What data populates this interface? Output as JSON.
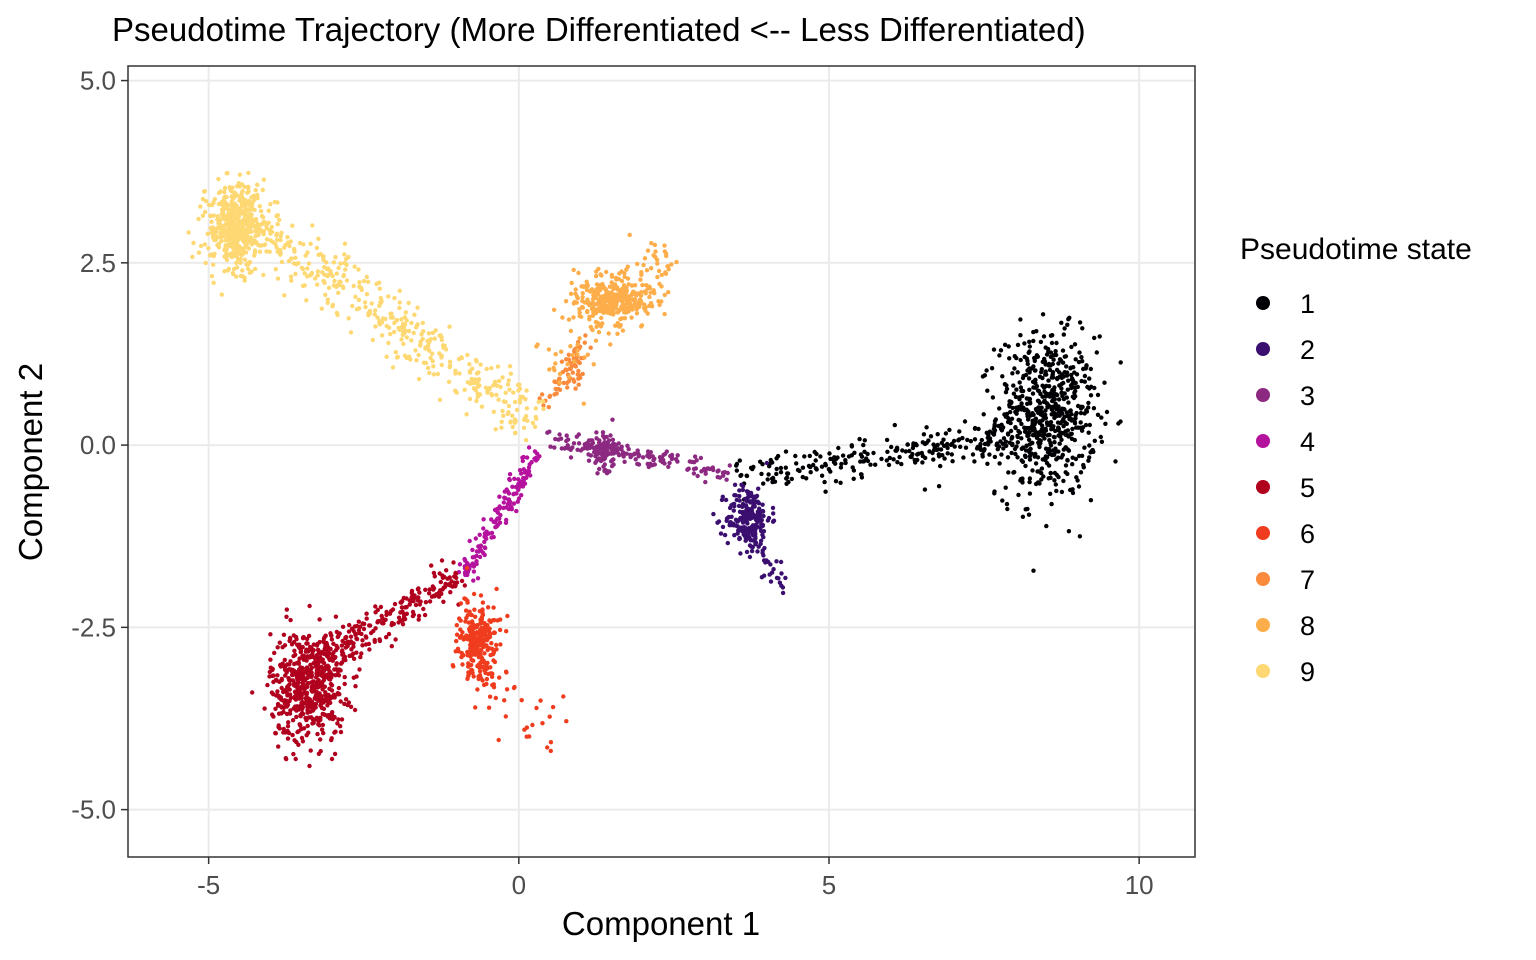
{
  "chart_data": {
    "type": "scatter",
    "title": "Pseudotime Trajectory (More Differentiated <-- Less Differentiated)",
    "xlabel": "Component 1",
    "ylabel": "Component 2",
    "xlim": [
      -6.3,
      10.9
    ],
    "ylim": [
      -5.65,
      5.2
    ],
    "x_ticks": [
      -5,
      0,
      5,
      10
    ],
    "x_tick_labels": [
      "-5",
      "0",
      "5",
      "10"
    ],
    "y_ticks": [
      5.0,
      2.5,
      0.0,
      -2.5,
      -5.0
    ],
    "y_tick_labels": [
      "5.0",
      "2.5",
      "0.0",
      "-2.5",
      "-5.0"
    ],
    "grid": true,
    "legend": {
      "title": "Pseudotime state",
      "placement": "right"
    },
    "series": [
      {
        "name": "1",
        "color": "#000004",
        "clusters": [
          {
            "center": [
              8.5,
              0.4
            ],
            "spread": [
              0.4,
              0.55
            ],
            "n": 650
          }
        ],
        "branches": [
          {
            "from": [
              3.5,
              -0.4
            ],
            "to": [
              8.0,
              0.1
            ],
            "n": 240,
            "width": 0.13
          }
        ]
      },
      {
        "name": "2",
        "color": "#3b0f70",
        "clusters": [
          {
            "center": [
              3.7,
              -1.0
            ],
            "spread": [
              0.18,
              0.22
            ],
            "n": 200
          }
        ],
        "branches": [
          {
            "from": [
              3.6,
              -1.1
            ],
            "to": [
              4.3,
              -2.0
            ],
            "n": 40,
            "width": 0.09
          }
        ]
      },
      {
        "name": "3",
        "color": "#8c2981",
        "clusters": [
          {
            "center": [
              1.4,
              -0.1
            ],
            "spread": [
              0.13,
              0.14
            ],
            "n": 90
          }
        ],
        "branches": [
          {
            "from": [
              0.4,
              0.1
            ],
            "to": [
              3.4,
              -0.38
            ],
            "n": 150,
            "width": 0.08
          }
        ]
      },
      {
        "name": "4",
        "color": "#b5129e",
        "branches": [
          {
            "from": [
              -0.9,
              -1.8
            ],
            "to": [
              0.3,
              -0.1
            ],
            "n": 150,
            "width": 0.08
          }
        ]
      },
      {
        "name": "5",
        "color": "#b0001e",
        "clusters": [
          {
            "center": [
              -3.4,
              -3.3
            ],
            "spread": [
              0.3,
              0.38
            ],
            "n": 550
          }
        ],
        "branches": [
          {
            "from": [
              -3.3,
              -3.0
            ],
            "to": [
              -0.9,
              -1.75
            ],
            "n": 240,
            "width": 0.12
          }
        ]
      },
      {
        "name": "6",
        "color": "#f03c1e",
        "clusters": [
          {
            "center": [
              -0.65,
              -2.7
            ],
            "spread": [
              0.16,
              0.28
            ],
            "n": 260
          }
        ],
        "branches": [
          {
            "from": [
              -0.5,
              -3.0
            ],
            "to": [
              0.6,
              -4.2
            ],
            "n": 30,
            "width": 0.25
          }
        ]
      },
      {
        "name": "7",
        "color": "#fb8a3c",
        "clusters": [
          {
            "center": [
              0.9,
              1.0
            ],
            "spread": [
              0.07,
              0.12
            ],
            "n": 30
          }
        ],
        "branches": [
          {
            "from": [
              0.4,
              0.5
            ],
            "to": [
              1.1,
              1.5
            ],
            "n": 40,
            "width": 0.08
          }
        ]
      },
      {
        "name": "8",
        "color": "#fdae4b",
        "clusters": [
          {
            "center": [
              1.5,
              2.0
            ],
            "spread": [
              0.3,
              0.17
            ],
            "n": 330
          }
        ],
        "branches": [
          {
            "from": [
              0.5,
              1.0
            ],
            "to": [
              2.5,
              2.6
            ],
            "n": 100,
            "width": 0.22
          }
        ]
      },
      {
        "name": "9",
        "color": "#fdd873",
        "clusters": [
          {
            "center": [
              -4.55,
              3.0
            ],
            "spread": [
              0.22,
              0.28
            ],
            "n": 500
          }
        ],
        "branches": [
          {
            "from": [
              -4.2,
              3.0
            ],
            "to": [
              0.3,
              0.3
            ],
            "n": 400,
            "width": 0.18
          }
        ]
      }
    ]
  }
}
